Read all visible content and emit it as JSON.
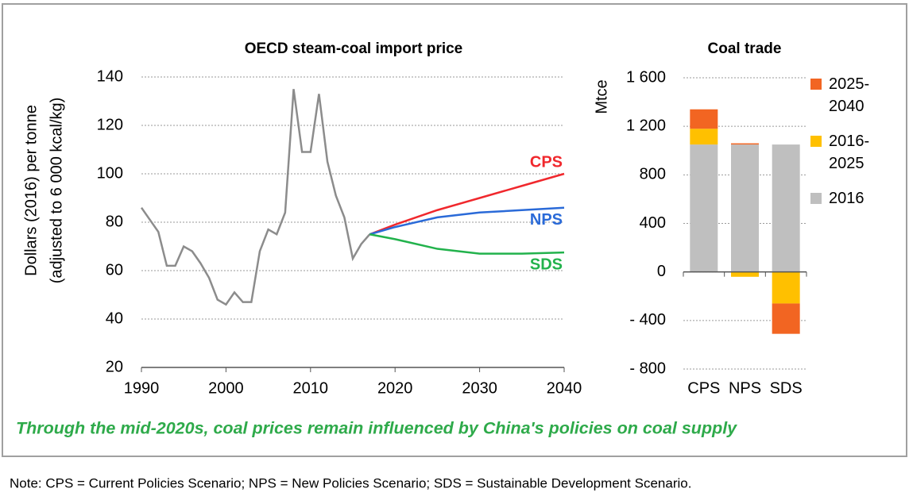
{
  "chart_data": [
    {
      "type": "line",
      "title": "OECD steam-coal import price",
      "ylabel": [
        "Dollars (2016) per tonne",
        "(adjusted to 6 000 kcal/kg)"
      ],
      "x": [
        1990,
        1991,
        1992,
        1993,
        1994,
        1995,
        1996,
        1997,
        1998,
        1999,
        2000,
        2001,
        2002,
        2003,
        2004,
        2005,
        2006,
        2007,
        2008,
        2009,
        2010,
        2011,
        2012,
        2013,
        2014,
        2015,
        2016,
        2017,
        2020,
        2025,
        2030,
        2035,
        2040
      ],
      "series": [
        {
          "color": "#8c8c8c",
          "values": [
            86,
            81,
            76,
            62,
            62,
            70,
            68,
            63,
            57,
            48,
            46,
            51,
            47,
            47,
            68,
            77,
            75,
            84,
            135,
            109,
            109,
            133,
            105,
            91,
            82,
            65,
            71,
            75,
            null,
            null,
            null,
            null,
            null
          ]
        },
        {
          "name": "CPS",
          "color": "#f0282d",
          "values": [
            null,
            null,
            null,
            null,
            null,
            null,
            null,
            null,
            null,
            null,
            null,
            null,
            null,
            null,
            null,
            null,
            null,
            null,
            null,
            null,
            null,
            null,
            null,
            null,
            null,
            null,
            null,
            75,
            79,
            85,
            90,
            95,
            100
          ]
        },
        {
          "name": "NPS",
          "color": "#2a6ad8",
          "values": [
            null,
            null,
            null,
            null,
            null,
            null,
            null,
            null,
            null,
            null,
            null,
            null,
            null,
            null,
            null,
            null,
            null,
            null,
            null,
            null,
            null,
            null,
            null,
            null,
            null,
            null,
            null,
            75,
            78,
            82,
            84,
            85,
            86
          ]
        },
        {
          "name": "SDS",
          "color": "#22b24c",
          "values": [
            null,
            null,
            null,
            null,
            null,
            null,
            null,
            null,
            null,
            null,
            null,
            null,
            null,
            null,
            null,
            null,
            null,
            null,
            null,
            null,
            null,
            null,
            null,
            null,
            null,
            null,
            null,
            75,
            73,
            69,
            67,
            67,
            67.5
          ]
        }
      ],
      "xlim": [
        1990,
        2040
      ],
      "xticks": [
        1990,
        2000,
        2010,
        2020,
        2030,
        2040
      ],
      "ylim": [
        20,
        140
      ],
      "yticks": [
        20,
        40,
        60,
        80,
        100,
        120,
        140
      ],
      "grid": true
    },
    {
      "type": "stacked_bar",
      "title": "Coal trade",
      "ylabel": "Mtce",
      "categories": [
        "CPS",
        "NPS",
        "SDS"
      ],
      "series": [
        {
          "name": "2016",
          "color": "#bfbfbf",
          "values": [
            1050,
            1050,
            1050
          ]
        },
        {
          "name": "2016-2025",
          "color": "#ffc000",
          "values": [
            130,
            -40,
            -260
          ]
        },
        {
          "name": "2025-2040",
          "color": "#f26522",
          "values": [
            160,
            10,
            -250
          ]
        }
      ],
      "ylim": [
        -800,
        1600
      ],
      "yticks": [
        {
          "value": -800,
          "label": "- 800"
        },
        {
          "value": -400,
          "label": "- 400"
        },
        0,
        400,
        800,
        {
          "value": 1200,
          "label": "1 200"
        },
        {
          "value": 1600,
          "label": "1 600"
        }
      ],
      "grid": true,
      "legend": "right"
    }
  ],
  "caption": "Through the mid-2020s, coal prices remain influenced by China's policies on coal supply",
  "note": "Note: CPS = Current Policies Scenario; NPS = New Policies Scenario; SDS = Sustainable Development Scenario."
}
